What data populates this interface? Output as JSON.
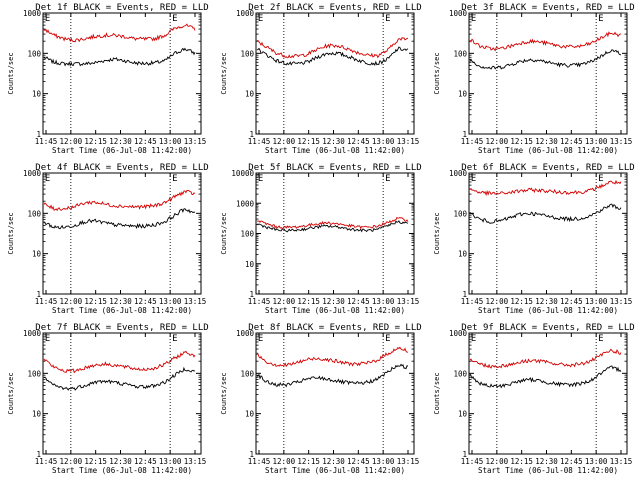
{
  "chart_data": [
    {
      "type": "line",
      "title": "Det 1f BLACK = Events, RED = LLD",
      "xlabel": "Start Time (06-Jul-08 11:42:00)",
      "ylabel": "Counts/sec",
      "yscale": "log",
      "ylim": [
        1,
        1000
      ],
      "x_ticks": [
        "11:45",
        "12:00",
        "12:15",
        "12:30",
        "12:45",
        "13:00",
        "13:15"
      ],
      "y_ticks": [
        "1",
        "10",
        "100",
        "1000"
      ],
      "markers": [
        "E",
        "E"
      ],
      "series": [
        {
          "color": "#000000",
          "values": [
            80,
            60,
            55,
            55,
            55,
            58,
            66,
            72,
            66,
            58,
            56,
            58,
            65,
            100,
            130,
            100
          ]
        },
        {
          "color": "#d40000",
          "values": [
            400,
            280,
            230,
            210,
            230,
            260,
            280,
            280,
            260,
            230,
            225,
            230,
            280,
            420,
            500,
            400
          ]
        }
      ]
    },
    {
      "type": "line",
      "title": "Det 2f BLACK = Events, RED = LLD",
      "xlabel": "Start Time (06-Jul-08 11:42:00)",
      "ylabel": "Counts/sec",
      "yscale": "log",
      "ylim": [
        1,
        1000
      ],
      "x_ticks": [
        "11:45",
        "12:00",
        "12:15",
        "12:30",
        "12:45",
        "13:00",
        "13:15"
      ],
      "y_ticks": [
        "1",
        "10",
        "100",
        "1000"
      ],
      "markers": [
        "E",
        "E"
      ],
      "series": [
        {
          "color": "#000000",
          "values": [
            130,
            90,
            65,
            55,
            55,
            60,
            80,
            100,
            100,
            85,
            68,
            58,
            56,
            72,
            130,
            120
          ]
        },
        {
          "color": "#d40000",
          "values": [
            200,
            140,
            100,
            85,
            85,
            95,
            125,
            155,
            155,
            130,
            105,
            90,
            88,
            120,
            220,
            230
          ]
        }
      ]
    },
    {
      "type": "line",
      "title": "Det 3f BLACK = Events, RED = LLD",
      "xlabel": "Start Time (06-Jul-08 11:42:00)",
      "ylabel": "Counts/sec",
      "yscale": "log",
      "ylim": [
        1,
        1000
      ],
      "x_ticks": [
        "11:45",
        "12:00",
        "12:15",
        "12:30",
        "12:45",
        "13:00",
        "13:15"
      ],
      "y_ticks": [
        "1",
        "10",
        "100",
        "1000"
      ],
      "markers": [
        "E",
        "E"
      ],
      "series": [
        {
          "color": "#000000",
          "values": [
            70,
            48,
            43,
            45,
            52,
            63,
            70,
            66,
            58,
            52,
            50,
            52,
            62,
            85,
            120,
            100
          ]
        },
        {
          "color": "#d40000",
          "values": [
            220,
            150,
            130,
            130,
            150,
            180,
            200,
            190,
            170,
            150,
            145,
            150,
            175,
            240,
            320,
            280
          ]
        }
      ]
    },
    {
      "type": "line",
      "title": "Det 4f BLACK = Events, RED = LLD",
      "xlabel": "Start Time (06-Jul-08 11:42:00)",
      "ylabel": "Counts/sec",
      "yscale": "log",
      "ylim": [
        1,
        1000
      ],
      "x_ticks": [
        "11:45",
        "12:00",
        "12:15",
        "12:30",
        "12:45",
        "13:00",
        "13:15"
      ],
      "y_ticks": [
        "1",
        "10",
        "100",
        "1000"
      ],
      "markers": [
        "E",
        "E"
      ],
      "series": [
        {
          "color": "#000000",
          "values": [
            60,
            45,
            45,
            50,
            62,
            65,
            58,
            52,
            50,
            48,
            48,
            52,
            62,
            90,
            130,
            100
          ]
        },
        {
          "color": "#d40000",
          "values": [
            170,
            130,
            130,
            145,
            180,
            190,
            170,
            155,
            150,
            145,
            145,
            155,
            185,
            260,
            350,
            300
          ]
        }
      ]
    },
    {
      "type": "line",
      "title": "Det 5f BLACK = Events, RED = LLD",
      "xlabel": "Start Time (06-Jul-08 11:42:00)",
      "ylabel": "Counts/sec",
      "yscale": "log",
      "ylim": [
        1,
        10000
      ],
      "x_ticks": [
        "11:45",
        "12:00",
        "12:15",
        "12:30",
        "12:45",
        "13:00",
        "13:15"
      ],
      "y_ticks": [
        "1",
        "10",
        "100",
        "1000",
        "10000"
      ],
      "markers": [
        "E",
        "E"
      ],
      "series": [
        {
          "color": "#000000",
          "values": [
            210,
            160,
            130,
            125,
            130,
            145,
            165,
            175,
            165,
            145,
            130,
            125,
            135,
            180,
            250,
            210
          ]
        },
        {
          "color": "#d40000",
          "values": [
            270,
            205,
            165,
            160,
            165,
            185,
            210,
            225,
            210,
            185,
            165,
            160,
            175,
            230,
            320,
            270
          ]
        }
      ]
    },
    {
      "type": "line",
      "title": "Det 6f BLACK = Events, RED = LLD",
      "xlabel": "Start Time (06-Jul-08 11:42:00)",
      "ylabel": "Counts/sec",
      "yscale": "log",
      "ylim": [
        1,
        1000
      ],
      "x_ticks": [
        "11:45",
        "12:00",
        "12:15",
        "12:30",
        "12:45",
        "13:00",
        "13:15"
      ],
      "y_ticks": [
        "1",
        "10",
        "100",
        "1000"
      ],
      "markers": [
        "E",
        "E"
      ],
      "series": [
        {
          "color": "#000000",
          "values": [
            100,
            70,
            62,
            65,
            78,
            95,
            100,
            92,
            82,
            75,
            72,
            75,
            88,
            120,
            160,
            130
          ]
        },
        {
          "color": "#d40000",
          "values": [
            400,
            330,
            310,
            310,
            330,
            360,
            380,
            370,
            350,
            335,
            330,
            335,
            370,
            470,
            600,
            560
          ]
        }
      ]
    },
    {
      "type": "line",
      "title": "Det 7f BLACK = Events, RED = LLD",
      "xlabel": "Start Time (06-Jul-08 11:42:00)",
      "ylabel": "Counts/sec",
      "yscale": "log",
      "ylim": [
        1,
        1000
      ],
      "x_ticks": [
        "11:45",
        "12:00",
        "12:15",
        "12:30",
        "12:45",
        "13:00",
        "13:15"
      ],
      "y_ticks": [
        "1",
        "10",
        "100",
        "1000"
      ],
      "markers": [
        "E",
        "E"
      ],
      "series": [
        {
          "color": "#000000",
          "values": [
            75,
            50,
            42,
            42,
            50,
            60,
            64,
            60,
            54,
            48,
            46,
            50,
            60,
            90,
            130,
            110
          ]
        },
        {
          "color": "#d40000",
          "values": [
            230,
            140,
            115,
            115,
            135,
            160,
            170,
            160,
            145,
            130,
            125,
            135,
            165,
            240,
            330,
            280
          ]
        }
      ]
    },
    {
      "type": "line",
      "title": "Det 8f BLACK = Events, RED = LLD",
      "xlabel": "Start Time (06-Jul-08 11:42:00)",
      "ylabel": "Counts/sec",
      "yscale": "log",
      "ylim": [
        1,
        1000
      ],
      "x_ticks": [
        "11:45",
        "12:00",
        "12:15",
        "12:30",
        "12:45",
        "13:00",
        "13:15"
      ],
      "y_ticks": [
        "1",
        "10",
        "100",
        "1000"
      ],
      "markers": [
        "E",
        "E"
      ],
      "series": [
        {
          "color": "#000000",
          "values": [
            95,
            60,
            52,
            52,
            60,
            72,
            78,
            72,
            64,
            58,
            56,
            60,
            72,
            110,
            160,
            140
          ]
        },
        {
          "color": "#d40000",
          "values": [
            300,
            190,
            160,
            160,
            185,
            220,
            235,
            220,
            195,
            175,
            170,
            180,
            215,
            310,
            420,
            360
          ]
        }
      ]
    },
    {
      "type": "line",
      "title": "Det 9f BLACK = Events, RED = LLD",
      "xlabel": "Start Time (06-Jul-08 11:42:00)",
      "ylabel": "Counts/sec",
      "yscale": "log",
      "ylim": [
        1,
        1000
      ],
      "x_ticks": [
        "11:45",
        "12:00",
        "12:15",
        "12:30",
        "12:45",
        "13:00",
        "13:15"
      ],
      "y_ticks": [
        "1",
        "10",
        "100",
        "1000"
      ],
      "markers": [
        "E",
        "E"
      ],
      "series": [
        {
          "color": "#000000",
          "values": [
            90,
            55,
            48,
            48,
            55,
            65,
            70,
            65,
            58,
            53,
            52,
            56,
            66,
            100,
            140,
            120
          ]
        },
        {
          "color": "#d40000",
          "values": [
            230,
            170,
            150,
            150,
            165,
            190,
            210,
            200,
            180,
            165,
            160,
            170,
            200,
            280,
            370,
            320
          ]
        }
      ]
    }
  ]
}
